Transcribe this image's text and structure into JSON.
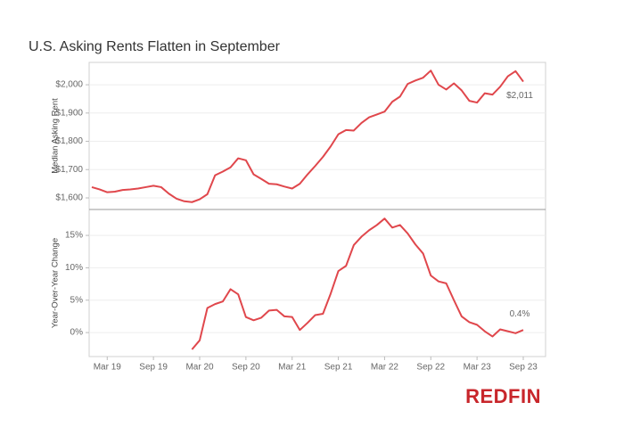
{
  "chart_data": {
    "type": "line",
    "title": "U.S. Asking Rents Flatten in September",
    "categories": [
      null,
      null,
      "Mar 19",
      null,
      null,
      null,
      null,
      null,
      "Sep 19",
      null,
      null,
      null,
      null,
      null,
      "Mar 20",
      null,
      null,
      null,
      null,
      null,
      "Sep 20",
      null,
      null,
      null,
      null,
      null,
      "Mar 21",
      null,
      null,
      null,
      null,
      null,
      "Sep 21",
      null,
      null,
      null,
      null,
      null,
      "Mar 22",
      null,
      null,
      null,
      null,
      null,
      "Sep 22",
      null,
      null,
      null,
      null,
      null,
      "Mar 23",
      null,
      null,
      null,
      null,
      null,
      "Sep 23"
    ],
    "grid": true,
    "panels": [
      {
        "ylabel": "Median Asking Rent",
        "ylim": [
          1559,
          2079
        ],
        "yticks": [
          {
            "value": 1600,
            "label": "$1,600"
          },
          {
            "value": 1700,
            "label": "$1,700"
          },
          {
            "value": 1800,
            "label": "$1,800"
          },
          {
            "value": 1900,
            "label": "$1,900"
          },
          {
            "value": 2000,
            "label": "$2,000"
          }
        ],
        "series": [
          {
            "color": "#e0474c",
            "values": [
              1638,
              1630,
              1620,
              1622,
              1628,
              1630,
              1633,
              1638,
              1643,
              1638,
              1615,
              1597,
              1588,
              1585,
              1595,
              1613,
              1680,
              1693,
              1708,
              1740,
              1733,
              1683,
              1667,
              1650,
              1648,
              1640,
              1633,
              1650,
              1683,
              1713,
              1745,
              1782,
              1825,
              1840,
              1838,
              1865,
              1885,
              1895,
              1905,
              1940,
              1958,
              2003,
              2015,
              2025,
              2050,
              2000,
              1983,
              2005,
              1980,
              1943,
              1937,
              1970,
              1965,
              1993,
              2030,
              2048,
              2011
            ],
            "value_labels": [
              null,
              null,
              null,
              null,
              null,
              null,
              null,
              null,
              null,
              null,
              null,
              null,
              null,
              null,
              null,
              null,
              null,
              null,
              null,
              null,
              null,
              null,
              null,
              null,
              null,
              null,
              null,
              null,
              null,
              null,
              null,
              null,
              null,
              null,
              null,
              null,
              null,
              null,
              null,
              null,
              null,
              null,
              null,
              null,
              null,
              null,
              null,
              null,
              null,
              null,
              null,
              null,
              null,
              null,
              null,
              null,
              "$2,011"
            ]
          }
        ]
      },
      {
        "ylabel": "Year-Over-Year Change",
        "ylim": [
          -3.7,
          19
        ],
        "yticks": [
          {
            "value": 0,
            "label": "0%"
          },
          {
            "value": 5,
            "label": "5%"
          },
          {
            "value": 10,
            "label": "10%"
          },
          {
            "value": 15,
            "label": "15%"
          }
        ],
        "series": [
          {
            "color": "#e0474c",
            "values": [
              null,
              null,
              null,
              null,
              null,
              null,
              null,
              null,
              null,
              null,
              null,
              null,
              null,
              -2.6,
              -1.2,
              3.8,
              4.4,
              4.8,
              6.7,
              5.9,
              2.4,
              1.9,
              2.3,
              3.4,
              3.5,
              2.5,
              2.4,
              0.4,
              1.5,
              2.7,
              2.9,
              6.0,
              9.5,
              10.3,
              13.5,
              14.8,
              15.8,
              16.6,
              17.6,
              16.2,
              16.6,
              15.3,
              13.6,
              12.2,
              8.8,
              7.9,
              7.6,
              5.0,
              2.5,
              1.6,
              1.2,
              0.2,
              -0.6,
              0.5,
              0.2,
              -0.1,
              0.4
            ],
            "value_labels": [
              null,
              null,
              null,
              null,
              null,
              null,
              null,
              null,
              null,
              null,
              null,
              null,
              null,
              null,
              null,
              null,
              null,
              null,
              null,
              null,
              null,
              null,
              null,
              null,
              null,
              null,
              null,
              null,
              null,
              null,
              null,
              null,
              null,
              null,
              null,
              null,
              null,
              null,
              null,
              null,
              null,
              null,
              null,
              null,
              null,
              null,
              null,
              null,
              null,
              null,
              null,
              null,
              null,
              null,
              null,
              null,
              "0.4%"
            ]
          }
        ]
      }
    ]
  },
  "logo": "REDFIN"
}
